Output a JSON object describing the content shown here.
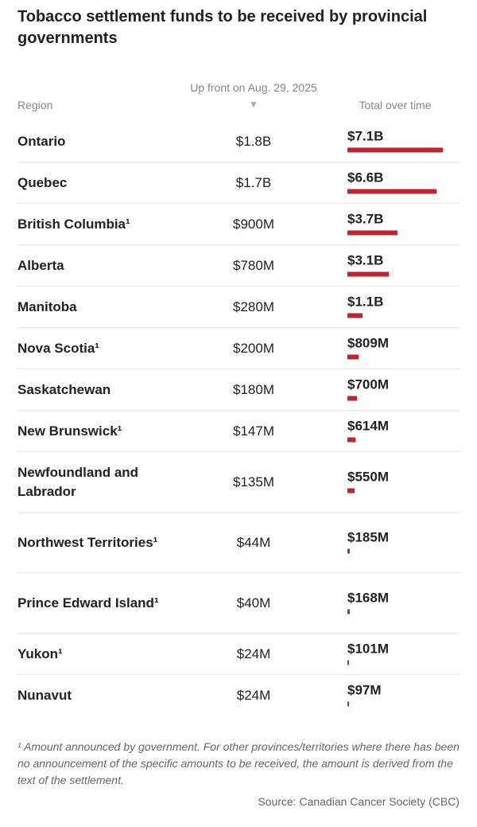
{
  "title": "Tobacco settlement funds to be received by provincial governments",
  "headers": {
    "region": "Region",
    "upfront": "Up front on Aug. 29, 2025",
    "sort_icon": "▼",
    "total": "Total over time"
  },
  "colors": {
    "bar": "#c1242f"
  },
  "chart_data": {
    "type": "table",
    "title": "Tobacco settlement funds to be received by provincial governments",
    "columns": [
      "Region",
      "Up front on Aug. 29, 2025",
      "Total over time"
    ],
    "rows": [
      {
        "region": "Ontario",
        "upfront": "$1.8B",
        "total": "$7.1B",
        "total_m": 7100
      },
      {
        "region": "Quebec",
        "upfront": "$1.7B",
        "total": "$6.6B",
        "total_m": 6600
      },
      {
        "region": "British Columbia¹",
        "upfront": "$900M",
        "total": "$3.7B",
        "total_m": 3700
      },
      {
        "region": "Alberta",
        "upfront": "$780M",
        "total": "$3.1B",
        "total_m": 3100
      },
      {
        "region": "Manitoba",
        "upfront": "$280M",
        "total": "$1.1B",
        "total_m": 1100
      },
      {
        "region": "Nova Scotia¹",
        "upfront": "$200M",
        "total": "$809M",
        "total_m": 809
      },
      {
        "region": "Saskatchewan",
        "upfront": "$180M",
        "total": "$700M",
        "total_m": 700
      },
      {
        "region": "New Brunswick¹",
        "upfront": "$147M",
        "total": "$614M",
        "total_m": 614
      },
      {
        "region": "Newfoundland and Labrador",
        "upfront": "$135M",
        "total": "$550M",
        "total_m": 550
      },
      {
        "region": "Northwest Territories¹",
        "upfront": "$44M",
        "total": "$185M",
        "total_m": 185
      },
      {
        "region": "Prince Edward Island¹",
        "upfront": "$40M",
        "total": "$168M",
        "total_m": 168
      },
      {
        "region": "Yukon¹",
        "upfront": "$24M",
        "total": "$101M",
        "total_m": 101
      },
      {
        "region": "Nunavut",
        "upfront": "$24M",
        "total": "$97M",
        "total_m": 97
      }
    ],
    "sort": "Up front on Aug. 29, 2025 descending"
  },
  "footnote": "¹ Amount announced by government. For other provinces/territories where there has been no announcement of the specific amounts to be received, the amount is derived from the text of the settlement.",
  "source": "Source: Canadian Cancer Society (CBC)"
}
